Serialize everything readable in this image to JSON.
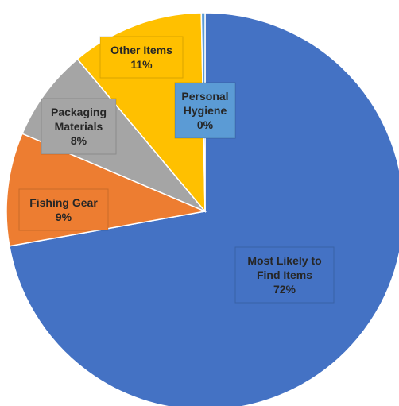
{
  "chart_data": {
    "type": "pie",
    "title": "",
    "series": [
      {
        "slices": [
          {
            "label": "Most Likely to Find Items",
            "label_lines": [
              "Most Likely to",
              "Find Items"
            ],
            "percent_label": "72%",
            "value": 72.2,
            "color": "#4472C4"
          },
          {
            "label": "Fishing Gear",
            "label_lines": [
              "Fishing Gear"
            ],
            "percent_label": "9%",
            "value": 9.2,
            "color": "#ED7D31"
          },
          {
            "label": "Packaging Materials",
            "label_lines": [
              "Packaging",
              "Materials"
            ],
            "percent_label": "8%",
            "value": 7.5,
            "color": "#A5A5A5"
          },
          {
            "label": "Other Items",
            "label_lines": [
              "Other Items"
            ],
            "percent_label": "11%",
            "value": 10.8,
            "color": "#FFC000"
          },
          {
            "label": "Personal Hygiene",
            "label_lines": [
              "Personal",
              "Hygiene"
            ],
            "percent_label": "0%",
            "value": 0.3,
            "color": "#5B9BD5"
          }
        ]
      }
    ],
    "start_angle": "12 o'clock",
    "direction": "clockwise",
    "legend": "none",
    "data_labels": "inside, boxed with slice color"
  }
}
